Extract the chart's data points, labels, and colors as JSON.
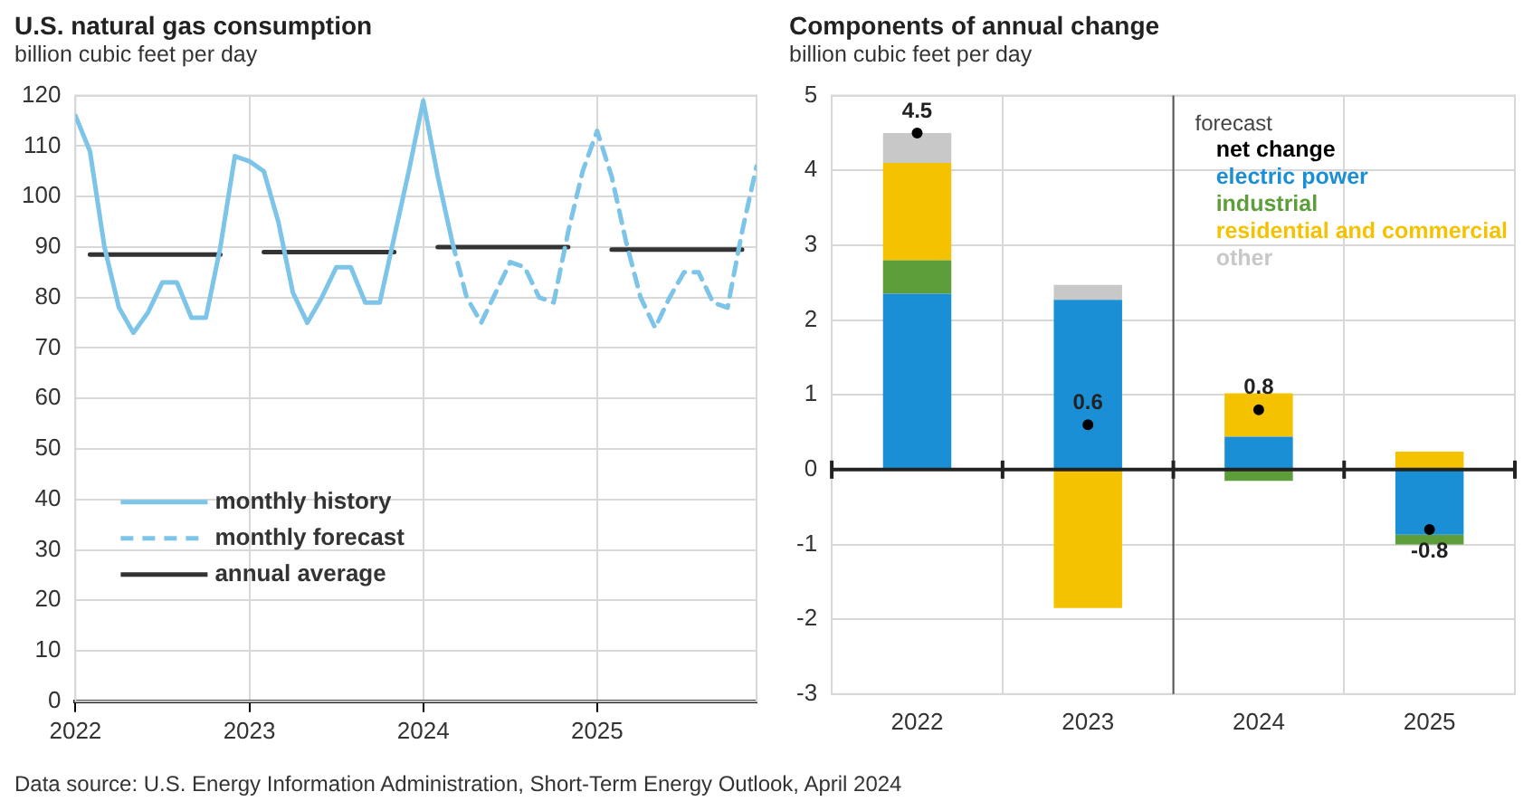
{
  "chart_data": [
    {
      "type": "line",
      "title": "U.S. natural gas consumption",
      "subtitle": "billion cubic feet per day",
      "annotations": [
        "Data source: U.S. Energy Information Administration, Short-Term Energy Outlook, April 2024"
      ],
      "xlim": [
        "2022-01",
        "2025-12"
      ],
      "xticks": [
        {
          "value": "2022-01",
          "label": "2022"
        },
        {
          "value": "2023-01",
          "label": "2023"
        },
        {
          "value": "2024-01",
          "label": "2024"
        },
        {
          "value": "2025-01",
          "label": "2025"
        }
      ],
      "ylim": [
        0,
        120
      ],
      "yticks": [
        0,
        10,
        20,
        30,
        40,
        50,
        60,
        70,
        80,
        90,
        100,
        110,
        120
      ],
      "grid": true,
      "legend": "bottom left",
      "marker": "none",
      "series": [
        {
          "name": "monthly history",
          "color": "#7cc4e8",
          "line_style": "solid",
          "x": [
            "2022-01",
            "2022-02",
            "2022-03",
            "2022-04",
            "2022-05",
            "2022-06",
            "2022-07",
            "2022-08",
            "2022-09",
            "2022-10",
            "2022-11",
            "2022-12",
            "2023-01",
            "2023-02",
            "2023-03",
            "2023-04",
            "2023-05",
            "2023-06",
            "2023-07",
            "2023-08",
            "2023-09",
            "2023-10",
            "2023-11",
            "2023-12",
            "2024-01",
            "2024-02",
            "2024-03"
          ],
          "values": [
            116,
            109,
            90,
            78,
            73,
            77,
            83,
            83,
            76,
            76,
            90,
            108,
            107,
            105,
            95,
            81,
            75,
            80,
            86,
            86,
            79,
            79,
            92,
            105,
            119,
            104,
            91
          ]
        },
        {
          "name": "monthly forecast",
          "color": "#7cc4e8",
          "line_style": "dashed",
          "x": [
            "2024-03",
            "2024-04",
            "2024-05",
            "2024-06",
            "2024-07",
            "2024-08",
            "2024-09",
            "2024-10",
            "2024-11",
            "2024-12",
            "2025-01",
            "2025-02",
            "2025-03",
            "2025-04",
            "2025-05",
            "2025-06",
            "2025-07",
            "2025-08",
            "2025-09",
            "2025-10",
            "2025-11",
            "2025-12"
          ],
          "values": [
            91,
            80,
            75,
            81,
            87,
            86,
            80,
            79,
            93,
            105,
            113,
            104,
            91,
            80,
            74,
            80,
            85,
            85,
            79,
            78,
            93,
            106
          ]
        },
        {
          "name": "annual average",
          "color": "#333333",
          "line_style": "solid",
          "x": [
            "2022-02",
            "2022-11",
            "2022-12",
            "2023-02",
            "2023-11",
            "2023-12",
            "2024-02",
            "2024-11",
            "2024-12",
            "2025-02",
            "2025-11"
          ],
          "values": [
            88.5,
            88.5,
            null,
            89,
            89,
            null,
            90,
            90,
            null,
            89.5,
            89.5
          ]
        }
      ]
    },
    {
      "type": "bar",
      "title": "Components of annual change",
      "subtitle": "billion cubic feet per day",
      "stacked": true,
      "categories": [
        "2022",
        "2023",
        "2024",
        "2025"
      ],
      "ylim": [
        -3,
        5
      ],
      "yticks": [
        -3,
        -2,
        -1,
        0,
        1,
        2,
        3,
        4,
        5
      ],
      "grid": true,
      "legend": "top right",
      "marker": "circle",
      "ref_lines": [
        {
          "axis": "x",
          "value": "2024",
          "label": "forecast",
          "color": "#555555"
        }
      ],
      "series": [
        {
          "name": "net change",
          "type": "scatter",
          "color": "#000000",
          "values": [
            4.5,
            0.6,
            0.8,
            -0.8
          ],
          "value_labels": [
            "4.5",
            "0.6",
            "0.8",
            "-0.8"
          ]
        },
        {
          "name": "electric power",
          "color": "#1b8fd6",
          "values": [
            2.35,
            2.27,
            0.44,
            -0.87
          ]
        },
        {
          "name": "industrial",
          "color": "#5d9e3a",
          "values": [
            0.45,
            null,
            -0.15,
            -0.13
          ]
        },
        {
          "name": "residential and commercial",
          "color": "#f5c200",
          "values": [
            1.3,
            -1.85,
            0.58,
            0.24
          ]
        },
        {
          "name": "other",
          "color": "#c8c8c8",
          "values": [
            0.4,
            0.2,
            null,
            null
          ]
        }
      ]
    }
  ]
}
